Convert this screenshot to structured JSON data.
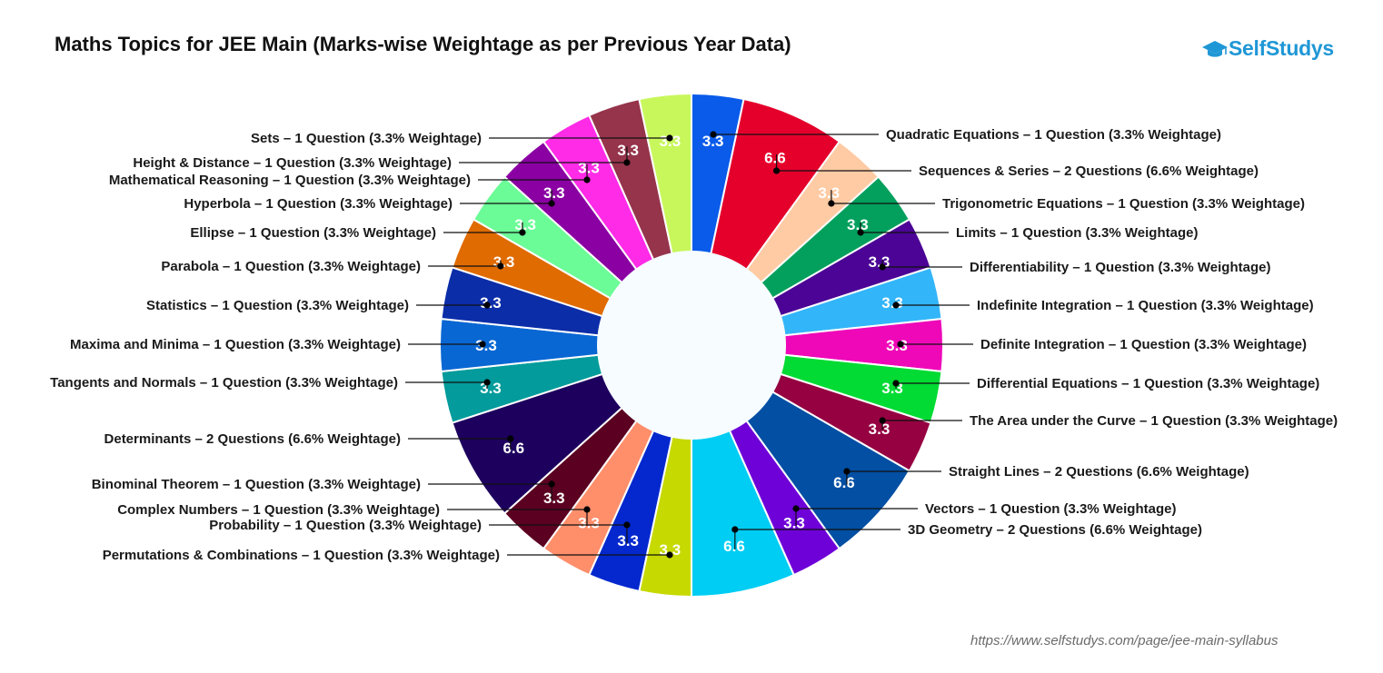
{
  "header": {
    "title": "Maths Topics for JEE Main (Marks-wise Weightage as per Previous Year Data)",
    "logo_text": "SelfStudys",
    "logo_icon": "graduation-cap-icon"
  },
  "footer": {
    "source_url": "https://www.selfstudys.com/page/jee-main-syllabus"
  },
  "colors": {
    "background": "#ffffff",
    "hole": "#f6fcff",
    "brand": "#1f97d6"
  },
  "chart_data": {
    "type": "pie",
    "title": "Maths Topics for JEE Main (Marks-wise Weightage as per Previous Year Data)",
    "donut": true,
    "start_angle_deg": 0,
    "direction": "clockwise",
    "slices": [
      {
        "label": "Quadratic Equations – 1 Question (3.3% Weightage)",
        "value": 3.3,
        "display": "3.3",
        "color": "#0a5bea"
      },
      {
        "label": "Sequences & Series – 2 Questions (6.6% Weightage)",
        "value": 6.6,
        "display": "6.6",
        "color": "#e4002b"
      },
      {
        "label": "Trigonometric Equations – 1 Question (3.3% Weightage)",
        "value": 3.3,
        "display": "3.3",
        "color": "#ffcba4"
      },
      {
        "label": "Limits – 1 Question (3.3% Weightage)",
        "value": 3.3,
        "display": "3.3",
        "color": "#03a05d"
      },
      {
        "label": "Differentiability – 1 Question (3.3% Weightage)",
        "value": 3.3,
        "display": "3.3",
        "color": "#4b0496"
      },
      {
        "label": "Indefinite Integration – 1 Question (3.3% Weightage)",
        "value": 3.3,
        "display": "3.3",
        "color": "#33b5f9"
      },
      {
        "label": "Definite Integration – 1 Question (3.3% Weightage)",
        "value": 3.3,
        "display": "3.3",
        "color": "#ee08b8"
      },
      {
        "label": "Differential Equations – 1 Question (3.3% Weightage)",
        "value": 3.3,
        "display": "3.3",
        "color": "#02db33"
      },
      {
        "label": "The Area under the Curve – 1 Question (3.3% Weightage)",
        "value": 3.3,
        "display": "3.3",
        "color": "#960141"
      },
      {
        "label": "Straight Lines – 2 Questions (6.6% Weightage)",
        "value": 6.6,
        "display": "6.6",
        "color": "#024fa3"
      },
      {
        "label": "Vectors – 1 Question (3.3% Weightage)",
        "value": 3.3,
        "display": "3.3",
        "color": "#6e00d8"
      },
      {
        "label": "3D Geometry – 2 Questions (6.6% Weightage)",
        "value": 6.6,
        "display": "6.6",
        "color": "#00cdf3"
      },
      {
        "label": "Permutations & Combinations – 1 Question (3.3% Weightage)",
        "value": 3.3,
        "display": "3.3",
        "color": "#c6d900"
      },
      {
        "label": "Probability – 1 Question (3.3% Weightage)",
        "value": 3.3,
        "display": "3.3",
        "color": "#0428cd"
      },
      {
        "label": "Complex Numbers – 1 Question (3.3% Weightage)",
        "value": 3.3,
        "display": "3.3",
        "color": "#ff8e6b"
      },
      {
        "label": "Binominal Theorem – 1 Question (3.3% Weightage)",
        "value": 3.3,
        "display": "3.3",
        "color": "#5b0020"
      },
      {
        "label": "Determinants – 2 Questions (6.6% Weightage)",
        "value": 6.6,
        "display": "6.6",
        "color": "#1d005e"
      },
      {
        "label": "Tangents and Normals – 1 Question (3.3% Weightage)",
        "value": 3.3,
        "display": "3.3",
        "color": "#039b9b"
      },
      {
        "label": "Maxima and Minima – 1 Question (3.3% Weightage)",
        "value": 3.3,
        "display": "3.3",
        "color": "#0967d3"
      },
      {
        "label": "Statistics – 1 Question (3.3% Weightage)",
        "value": 3.3,
        "display": "3.3",
        "color": "#0b2da8"
      },
      {
        "label": "Parabola – 1 Question (3.3% Weightage)",
        "value": 3.3,
        "display": "3.3",
        "color": "#e06b00"
      },
      {
        "label": "Ellipse – 1 Question (3.3% Weightage)",
        "value": 3.3,
        "display": "3.3",
        "color": "#6bfb97"
      },
      {
        "label": "Hyperbola – 1 Question (3.3% Weightage)",
        "value": 3.3,
        "display": "3.3",
        "color": "#8a00a3"
      },
      {
        "label": "Mathematical Reasoning – 1 Question (3.3% Weightage)",
        "value": 3.3,
        "display": "3.3",
        "color": "#ff2be7"
      },
      {
        "label": "Height & Distance – 1 Question (3.3% Weightage)",
        "value": 3.3,
        "display": "3.3",
        "color": "#95344b"
      },
      {
        "label": "Sets – 1 Question (3.3% Weightage)",
        "value": 3.3,
        "display": "3.3",
        "color": "#c8f75c"
      }
    ]
  }
}
